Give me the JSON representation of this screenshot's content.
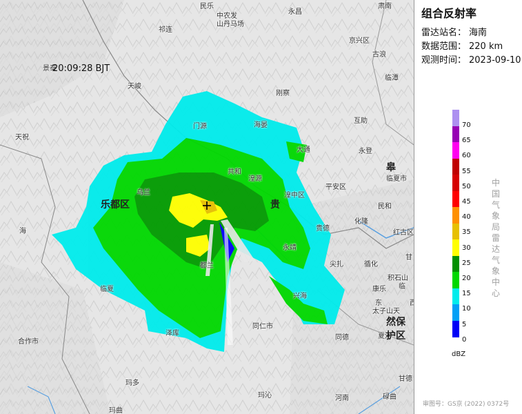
{
  "panel": {
    "title": "组合反射率",
    "station_label": "雷达站名：",
    "station_value": "海南",
    "range_label": "数据范围：",
    "range_value": "220 km",
    "time_label": "观测时间：",
    "time_date": "2023-09-10",
    "time_clock": "20:09:28 BJT",
    "unit": "dBZ",
    "vertical_text": "中国气象局雷达气象中心",
    "approval": "审图号：GS京 (2022) 0372号"
  },
  "colors": {
    "scale": [
      "#0000f6",
      "#01a0f6",
      "#00ecec",
      "#00d800",
      "#019000",
      "#ffff00",
      "#e7c000",
      "#ff9000",
      "#ff0000",
      "#d60000",
      "#c00000",
      "#ff00f0",
      "#9600b4",
      "#ad90f0"
    ]
  },
  "scale_ticks": [
    "70",
    "65",
    "60",
    "55",
    "50",
    "45",
    "40",
    "35",
    "30",
    "25",
    "20",
    "15",
    "10",
    "5",
    "0"
  ],
  "places": [
    {
      "id": "minle",
      "name": "民乐"
    },
    {
      "id": "zhongnongfa",
      "name": "中农发"
    },
    {
      "id": "shandanmachang",
      "name": "山丹马场"
    },
    {
      "id": "yongchang",
      "name": "永昌"
    },
    {
      "id": "qilian",
      "name": "祁连"
    },
    {
      "id": "sunan",
      "name": "肃南"
    },
    {
      "id": "jingyuan",
      "name": "景泰"
    },
    {
      "id": "tianjun",
      "name": "天峻"
    },
    {
      "id": "gangcha",
      "name": "刚察"
    },
    {
      "id": "menyuan",
      "name": "门源"
    },
    {
      "id": "haiyan",
      "name": "海晏"
    },
    {
      "id": "datong",
      "name": "大通"
    },
    {
      "id": "huzhu",
      "name": "互助"
    },
    {
      "id": "tianzhu",
      "name": "天祝"
    },
    {
      "id": "wulan",
      "name": "乌兰"
    },
    {
      "id": "gonghe",
      "name": "共和"
    },
    {
      "id": "huangyuan",
      "name": "湟源"
    },
    {
      "id": "huangzhong",
      "name": "湟中区"
    },
    {
      "id": "pingan",
      "name": "平安区"
    },
    {
      "id": "ledu",
      "name": "乐都区"
    },
    {
      "id": "gui",
      "name": "贵"
    },
    {
      "id": "hai",
      "name": "海"
    },
    {
      "id": "dulan",
      "name": "都兰"
    },
    {
      "id": "guide",
      "name": "贵德"
    },
    {
      "id": "hualong",
      "name": "化隆"
    },
    {
      "id": "minhe",
      "name": "民和"
    },
    {
      "id": "honggu",
      "name": "红古区"
    },
    {
      "id": "yongjing",
      "name": "永靖"
    },
    {
      "id": "jianzha",
      "name": "尖扎"
    },
    {
      "id": "xunhua",
      "name": "循化"
    },
    {
      "id": "jishishan",
      "name": "积石山"
    },
    {
      "id": "linxia",
      "name": "临夏"
    },
    {
      "id": "xinghai",
      "name": "兴海"
    },
    {
      "id": "tongren",
      "name": "同仁市"
    },
    {
      "id": "zeku",
      "name": "泽库"
    },
    {
      "id": "tongde",
      "name": "同德"
    },
    {
      "id": "xiahe",
      "name": "夏河"
    },
    {
      "id": "hezuo",
      "name": "合作市"
    },
    {
      "id": "maduo",
      "name": "玛多"
    },
    {
      "id": "maqin",
      "name": "玛沁"
    },
    {
      "id": "henan",
      "name": "河南"
    },
    {
      "id": "luqu",
      "name": "碌曲"
    },
    {
      "id": "maqu",
      "name": "玛曲"
    },
    {
      "id": "gande",
      "name": "甘德"
    },
    {
      "id": "lintan",
      "name": "临潭"
    },
    {
      "id": "gu",
      "name": "古浪"
    },
    {
      "id": "yongdeng",
      "name": "永登"
    },
    {
      "id": "gao",
      "name": "皋"
    },
    {
      "id": "gansu",
      "name": "甘"
    },
    {
      "id": "dongxiang",
      "name": "东"
    },
    {
      "id": "taizishan",
      "name": "太子山天"
    },
    {
      "id": "ranjiang",
      "name": "然保护区"
    },
    {
      "id": "linzhou",
      "name": "临"
    },
    {
      "id": "kangle",
      "name": "康乐"
    },
    {
      "id": "linxiaxian",
      "name": "临夏市"
    },
    {
      "id": "jingning",
      "name": "京兴区"
    },
    {
      "id": "xixia",
      "name": "西"
    }
  ]
}
